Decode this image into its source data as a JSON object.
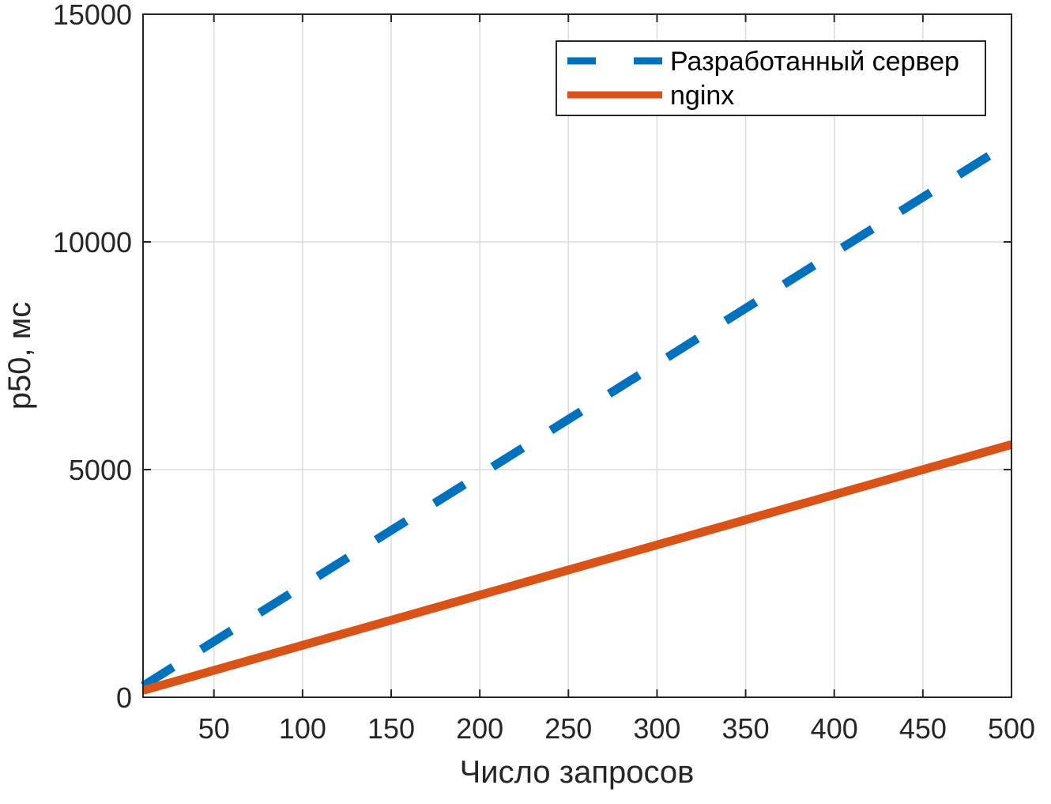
{
  "chart_data": {
    "type": "line",
    "xlabel": "Число запросов",
    "ylabel": "p50, мс",
    "xlim": [
      10,
      500
    ],
    "ylim": [
      0,
      15000
    ],
    "x_ticks": [
      50,
      100,
      150,
      200,
      250,
      300,
      350,
      400,
      450,
      500
    ],
    "y_ticks": [
      0,
      5000,
      10000,
      15000
    ],
    "grid": true,
    "legend_position": "top-right",
    "series": [
      {
        "name": "Разработанный сервер",
        "color": "#0072BD",
        "line_style": "dashed",
        "x": [
          10,
          500
        ],
        "y": [
          250,
          12200
        ]
      },
      {
        "name": "nginx",
        "color": "#D95319",
        "line_style": "solid",
        "x": [
          10,
          500
        ],
        "y": [
          150,
          5550
        ]
      }
    ]
  }
}
